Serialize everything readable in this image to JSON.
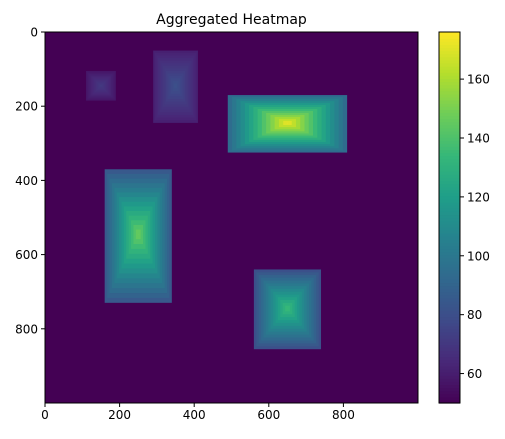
{
  "chart_data": {
    "type": "heatmap",
    "title": "Aggregated Heatmap",
    "xlabel": "",
    "ylabel": "",
    "xlim": [
      0,
      1000
    ],
    "ylim": [
      1000,
      0
    ],
    "x_ticks": [
      0,
      200,
      400,
      600,
      800
    ],
    "y_ticks": [
      0,
      200,
      400,
      600,
      800
    ],
    "colormap": "viridis",
    "value_range": [
      50,
      176
    ],
    "background_value": 50,
    "colorbar": {
      "ticks": [
        60,
        80,
        100,
        120,
        140,
        160
      ],
      "placement": "right"
    },
    "grid": false,
    "regions": [
      {
        "x_range": [
          110,
          190
        ],
        "y_range": [
          105,
          185
        ],
        "center": [
          150,
          145
        ],
        "peak": 72
      },
      {
        "x_range": [
          290,
          410
        ],
        "y_range": [
          50,
          245
        ],
        "center": [
          350,
          145
        ],
        "peak": 82
      },
      {
        "x_range": [
          490,
          810
        ],
        "y_range": [
          170,
          325
        ],
        "center": [
          650,
          245
        ],
        "peak": 176
      },
      {
        "x_range": [
          160,
          340
        ],
        "y_range": [
          370,
          730
        ],
        "center": [
          250,
          545
        ],
        "peak": 150
      },
      {
        "x_range": [
          560,
          740
        ],
        "y_range": [
          640,
          855
        ],
        "center": [
          650,
          745
        ],
        "peak": 138
      }
    ]
  }
}
